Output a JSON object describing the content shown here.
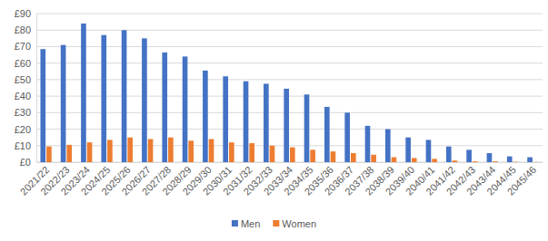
{
  "chart_data": {
    "type": "bar",
    "categories": [
      "2021/22",
      "2022/23",
      "2023/24",
      "2024/25",
      "2025/26",
      "2026/27",
      "2027/28",
      "2028/29",
      "2029/30",
      "2030/31",
      "2031/32",
      "2032/33",
      "2033/34",
      "2034/35",
      "2035/36",
      "2036/37",
      "2037/38",
      "2038/39",
      "2039/40",
      "2040/41",
      "2041/42",
      "2042/43",
      "2043/44",
      "2044/45",
      "2045/46"
    ],
    "series": [
      {
        "name": "Men",
        "color": "#4472c4",
        "values": [
          68.5,
          71,
          84,
          77,
          80,
          75,
          66.5,
          64,
          55.5,
          52,
          49,
          47.5,
          44.5,
          41,
          33.5,
          30,
          22,
          20,
          15,
          13.5,
          9.5,
          7.5,
          5.5,
          3.5,
          3
        ]
      },
      {
        "name": "Women",
        "color": "#ed7d31",
        "values": [
          9.5,
          10.5,
          12,
          13.5,
          15,
          14,
          15,
          13,
          14,
          12,
          11.5,
          10,
          9,
          7.5,
          6.5,
          5.5,
          4.5,
          3,
          2.5,
          2,
          1,
          0.5,
          0.5,
          0.2,
          0.1
        ]
      }
    ],
    "ylim": [
      0,
      90
    ],
    "yticks": [
      {
        "value": 0,
        "label": "£0"
      },
      {
        "value": 10,
        "label": "£10"
      },
      {
        "value": 20,
        "label": "£20"
      },
      {
        "value": 30,
        "label": "£30"
      },
      {
        "value": 40,
        "label": "£40"
      },
      {
        "value": 50,
        "label": "£50"
      },
      {
        "value": 60,
        "label": "£60"
      },
      {
        "value": 70,
        "label": "£70"
      },
      {
        "value": 80,
        "label": "£80"
      },
      {
        "value": 90,
        "label": "£90"
      }
    ],
    "grid": true,
    "legend": "bottom"
  }
}
